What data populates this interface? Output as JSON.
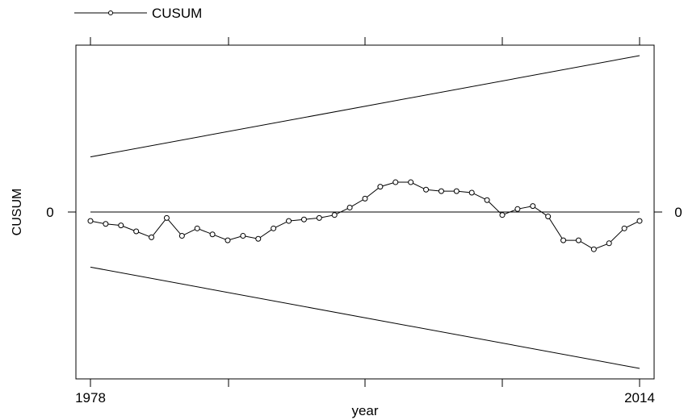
{
  "chart_data": {
    "type": "line",
    "xlabel": "year",
    "ylabel": "CUSUM",
    "legend": {
      "position": "top-left",
      "entries": [
        "CUSUM"
      ]
    },
    "xlim": [
      1978,
      2014
    ],
    "ylim": [
      -1.05,
      1.05
    ],
    "x_tick_labels": [
      "1978",
      "2014"
    ],
    "y_tick_labels": [
      "0"
    ],
    "grid": false,
    "reference_line": 0,
    "series": [
      {
        "name": "CUSUM",
        "marker": "circle",
        "x": [
          1978,
          1979,
          1980,
          1981,
          1982,
          1983,
          1984,
          1985,
          1986,
          1987,
          1988,
          1989,
          1990,
          1991,
          1992,
          1993,
          1994,
          1995,
          1996,
          1997,
          1998,
          1999,
          2000,
          2001,
          2002,
          2003,
          2004,
          2005,
          2006,
          2007,
          2008,
          2009,
          2010,
          2011,
          2012,
          2013,
          2014
        ],
        "y": [
          -0.06,
          -0.08,
          -0.09,
          -0.13,
          -0.17,
          -0.04,
          -0.16,
          -0.11,
          -0.15,
          -0.19,
          -0.16,
          -0.18,
          -0.11,
          -0.06,
          -0.05,
          -0.04,
          -0.02,
          0.03,
          0.09,
          0.17,
          0.2,
          0.2,
          0.15,
          0.14,
          0.14,
          0.13,
          0.08,
          -0.02,
          0.02,
          0.04,
          -0.03,
          -0.19,
          -0.19,
          -0.25,
          -0.21,
          -0.11,
          -0.06
        ]
      },
      {
        "name": "",
        "style": "upper-bound",
        "x": [
          1978,
          2014
        ],
        "y": [
          0.37,
          1.05
        ]
      },
      {
        "name": "",
        "style": "lower-bound",
        "x": [
          1978,
          2014
        ],
        "y": [
          -0.37,
          -1.05
        ]
      }
    ]
  }
}
